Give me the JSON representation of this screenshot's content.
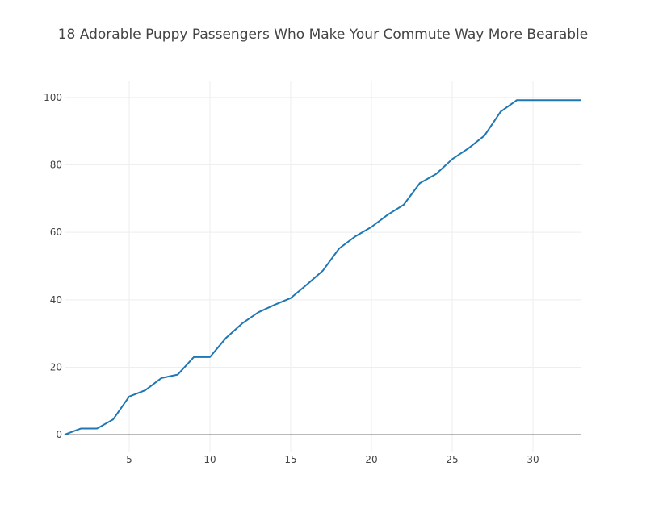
{
  "chart_data": {
    "type": "line",
    "title": "18 Adorable Puppy Passengers Who Make Your Commute Way More Bearable",
    "xlabel": "",
    "ylabel": "",
    "xlim": [
      1,
      33
    ],
    "ylim": [
      -5,
      105
    ],
    "x_ticks": [
      5,
      10,
      15,
      20,
      25,
      30
    ],
    "y_ticks": [
      0,
      20,
      40,
      60,
      80,
      100
    ],
    "grid": true,
    "legend": "none",
    "series": [
      {
        "color": "#1f77b4",
        "x": [
          1,
          2,
          3,
          4,
          5,
          6,
          7,
          8,
          9,
          10,
          11,
          12,
          13,
          14,
          15,
          16,
          17,
          18,
          19,
          20,
          21,
          22,
          23,
          24,
          25,
          26,
          27,
          28,
          29,
          30,
          31,
          32,
          33
        ],
        "values": [
          0,
          1.8,
          1.8,
          4.5,
          11.3,
          13.2,
          16.8,
          17.8,
          23.0,
          23.0,
          28.7,
          33.0,
          36.3,
          38.5,
          40.5,
          44.5,
          48.7,
          55.2,
          58.8,
          61.6,
          65.2,
          68.2,
          74.6,
          77.3,
          81.7,
          84.9,
          88.7,
          95.8,
          99.2,
          99.2,
          99.2,
          99.2,
          99.2
        ]
      }
    ]
  }
}
